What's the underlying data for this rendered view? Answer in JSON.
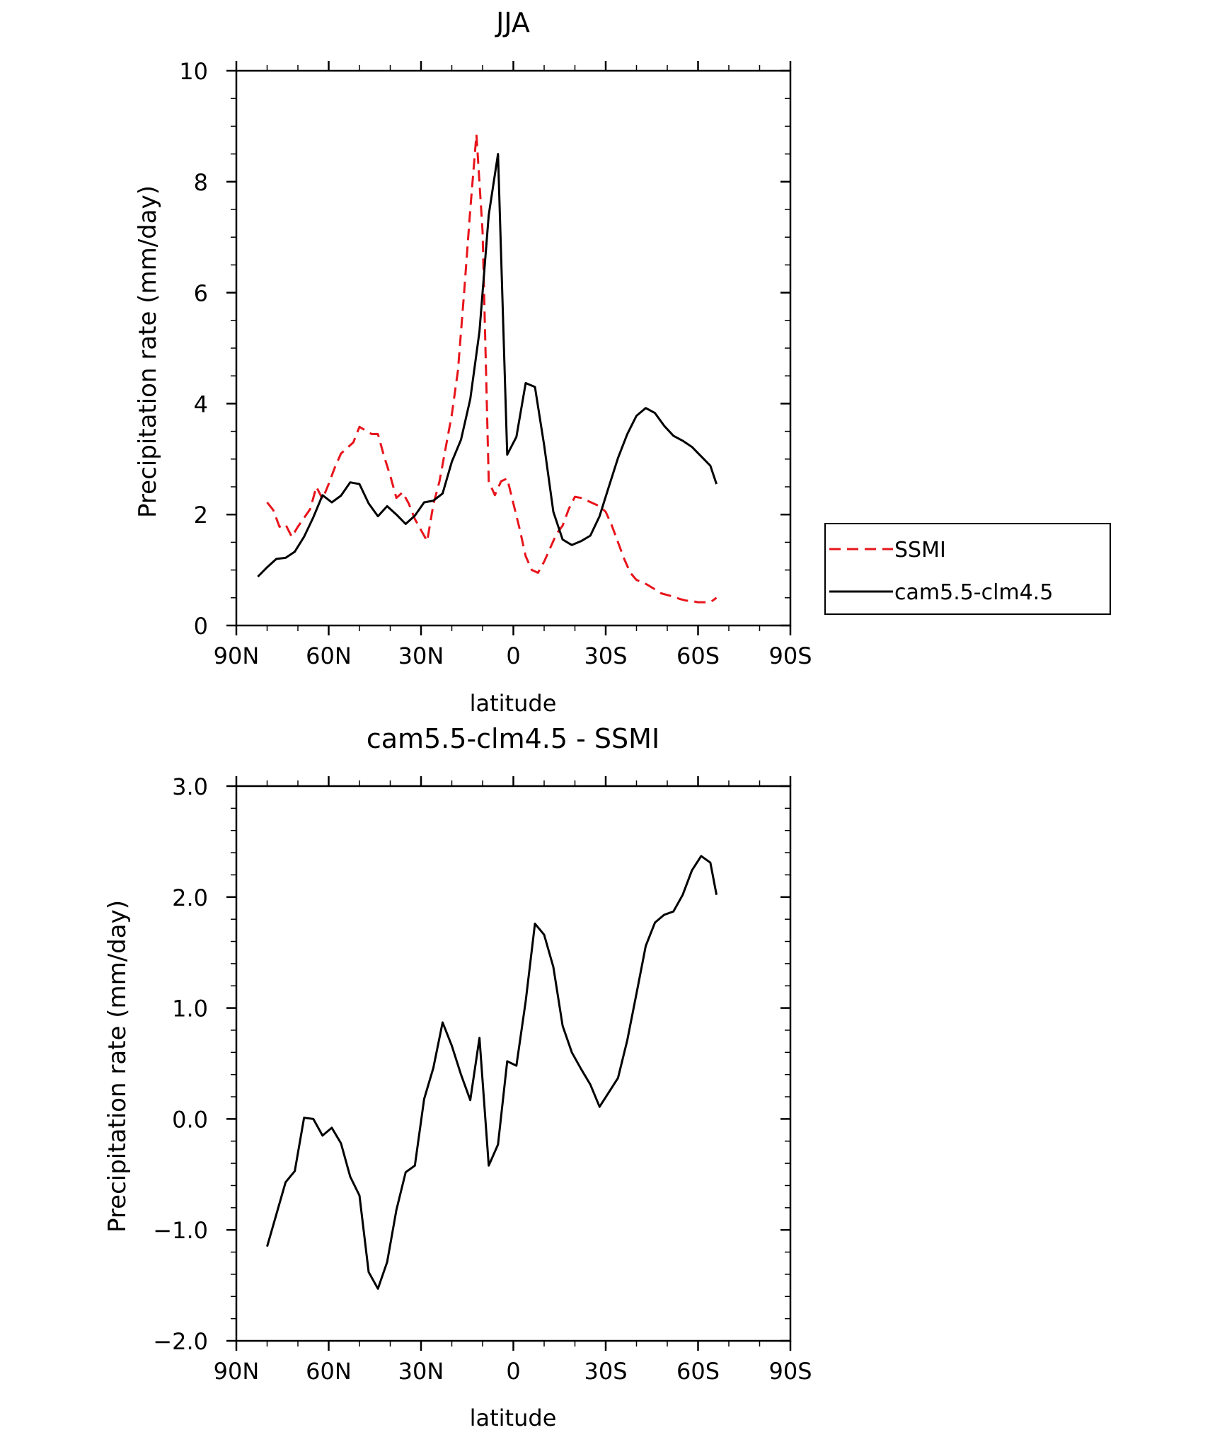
{
  "chart_data": [
    {
      "type": "line",
      "title": "JJA",
      "xlabel": "latitude",
      "ylabel": "Precipitation rate (mm/day)",
      "xlim": [
        90,
        -90
      ],
      "ylim": [
        0,
        10
      ],
      "x_ticks": [
        90,
        60,
        30,
        0,
        -30,
        -60,
        -90
      ],
      "x_tick_labels": [
        "90N",
        "60N",
        "30N",
        "0",
        "30S",
        "60S",
        "90S"
      ],
      "y_ticks": [
        0,
        2,
        4,
        6,
        8,
        10
      ],
      "y_tick_labels": [
        "0",
        "2",
        "4",
        "6",
        "8",
        "10"
      ],
      "legend": {
        "position": "right"
      },
      "series": [
        {
          "name": "SSMI",
          "style": "dashed",
          "color": "#e8141b",
          "x": [
            80,
            78,
            76,
            74,
            72,
            70,
            66,
            64,
            62,
            60,
            58,
            56,
            54,
            52,
            50,
            46,
            44,
            42,
            40,
            38,
            36,
            34,
            32,
            30,
            28,
            26,
            24,
            22,
            20,
            18,
            16,
            14,
            12,
            10,
            8,
            6,
            4,
            2,
            0,
            -2,
            -4,
            -6,
            -8,
            -10,
            -12,
            -14,
            -16,
            -18,
            -20,
            -22,
            -24,
            -26,
            -28,
            -30,
            -32,
            -34,
            -36,
            -38,
            -40,
            -42,
            -44,
            -46,
            -48,
            -50,
            -52,
            -54,
            -56,
            -58,
            -60,
            -62,
            -64,
            -66
          ],
          "y": [
            2.22,
            2.08,
            1.78,
            1.82,
            1.6,
            1.78,
            2.1,
            2.5,
            2.28,
            2.55,
            2.85,
            3.1,
            3.2,
            3.3,
            3.58,
            3.45,
            3.45,
            3.05,
            2.7,
            2.3,
            2.4,
            2.2,
            1.92,
            1.72,
            1.52,
            2.18,
            2.6,
            3.2,
            3.8,
            4.6,
            6.0,
            7.5,
            8.85,
            7.1,
            2.6,
            2.35,
            2.6,
            2.65,
            2.2,
            1.75,
            1.25,
            1.0,
            0.95,
            1.15,
            1.4,
            1.65,
            1.8,
            2.1,
            2.32,
            2.3,
            2.25,
            2.2,
            2.15,
            2.05,
            1.8,
            1.5,
            1.2,
            0.95,
            0.82,
            0.78,
            0.72,
            0.65,
            0.58,
            0.55,
            0.52,
            0.48,
            0.45,
            0.44,
            0.42,
            0.42,
            0.42,
            0.5
          ]
        },
        {
          "name": "cam5.5-clm4.5",
          "style": "solid",
          "color": "#000000",
          "x": [
            83,
            80,
            77,
            74,
            71,
            68,
            65,
            62,
            59,
            56,
            53,
            50,
            47,
            44,
            41,
            38,
            35,
            32,
            29,
            26,
            23,
            20,
            17,
            14,
            11,
            8,
            5,
            2,
            -1,
            -4,
            -7,
            -10,
            -13,
            -16,
            -19,
            -22,
            -25,
            -28,
            -31,
            -34,
            -37,
            -40,
            -43,
            -46,
            -49,
            -52,
            -55,
            -58,
            -61,
            -64,
            -66
          ],
          "y": [
            0.88,
            1.05,
            1.2,
            1.22,
            1.33,
            1.6,
            1.95,
            2.35,
            2.22,
            2.34,
            2.58,
            2.55,
            2.2,
            1.97,
            2.15,
            2.0,
            1.83,
            1.98,
            2.22,
            2.25,
            2.38,
            2.95,
            3.35,
            4.08,
            5.3,
            7.4,
            8.5,
            3.08,
            3.4,
            4.37,
            4.3,
            3.25,
            2.05,
            1.55,
            1.45,
            1.52,
            1.62,
            1.97,
            2.5,
            3.02,
            3.45,
            3.78,
            3.92,
            3.83,
            3.6,
            3.42,
            3.33,
            3.22,
            3.05,
            2.88,
            2.55
          ]
        }
      ]
    },
    {
      "type": "line",
      "title": "cam5.5-clm4.5 - SSMI",
      "xlabel": "latitude",
      "ylabel": "Precipitation rate (mm/day)",
      "xlim": [
        90,
        -90
      ],
      "ylim": [
        -2.0,
        3.0
      ],
      "x_ticks": [
        90,
        60,
        30,
        0,
        -30,
        -60,
        -90
      ],
      "x_tick_labels": [
        "90N",
        "60N",
        "30N",
        "0",
        "30S",
        "60S",
        "90S"
      ],
      "y_ticks": [
        -2,
        -1,
        0,
        1,
        2,
        3
      ],
      "y_tick_labels": [
        "−2.0",
        "−1.0",
        "0.0",
        "1.0",
        "2.0",
        "3.0"
      ],
      "series": [
        {
          "name": "cam5.5-clm4.5 - SSMI",
          "style": "solid",
          "color": "#000000",
          "x": [
            80,
            74,
            71,
            68,
            65,
            62,
            59,
            56,
            53,
            50,
            47,
            44,
            41,
            38,
            35,
            32,
            29,
            26,
            23,
            20,
            17,
            14,
            11,
            8,
            5,
            2,
            -1,
            -4,
            -7,
            -10,
            -13,
            -16,
            -19,
            -22,
            -25,
            -28,
            -31,
            -34,
            -37,
            -40,
            -43,
            -46,
            -49,
            -52,
            -55,
            -58,
            -61,
            -64,
            -66
          ],
          "y": [
            -1.15,
            -0.57,
            -0.47,
            0.01,
            0.0,
            -0.15,
            -0.08,
            -0.22,
            -0.52,
            -0.69,
            -1.38,
            -1.53,
            -1.29,
            -0.82,
            -0.48,
            -0.42,
            0.18,
            0.46,
            0.87,
            0.66,
            0.4,
            0.17,
            0.73,
            -0.42,
            -0.23,
            0.52,
            0.48,
            1.06,
            1.76,
            1.66,
            1.37,
            0.84,
            0.6,
            0.45,
            0.31,
            0.11,
            0.24,
            0.37,
            0.71,
            1.13,
            1.56,
            1.77,
            1.84,
            1.87,
            2.02,
            2.24,
            2.37,
            2.31,
            2.02
          ]
        }
      ]
    }
  ]
}
